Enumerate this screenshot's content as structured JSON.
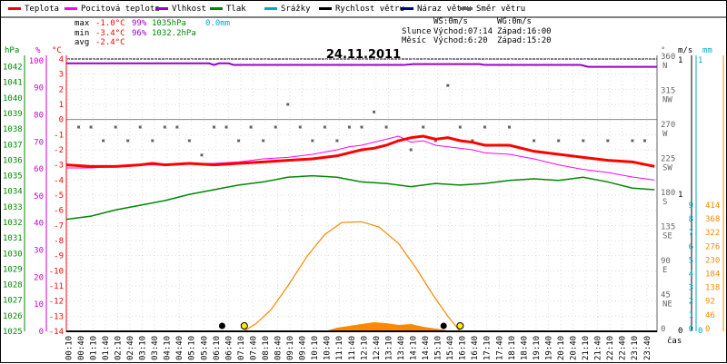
{
  "legend": [
    {
      "label": "Teplota",
      "color": "#ff0000"
    },
    {
      "label": "Pocitová teplota",
      "color": "#ff00ff"
    },
    {
      "label": "Vlhkost",
      "color": "#9900cc"
    },
    {
      "label": "Tlak",
      "color": "#008800"
    },
    {
      "label": "Srážky",
      "color": "#00aacc"
    },
    {
      "label": "Rychlost větru",
      "color": "#000000"
    },
    {
      "label": "Náraz větru",
      "color": "#000088"
    },
    {
      "label": "Směr větru",
      "color": "#666666"
    }
  ],
  "stats": {
    "max": {
      "label": "max",
      "temp": "-1.0°C",
      "hum": "99%",
      "press": "1035hPa",
      "rain": "0.0mm"
    },
    "min": {
      "label": "min",
      "temp": "-3.4°C",
      "hum": "96%",
      "press": "1032.2hPa"
    },
    "avg": {
      "label": "avg",
      "temp": "-2.4°C"
    }
  },
  "info": {
    "ws": "WS:0m/s",
    "wg": "WG:0m/s",
    "sun_label": "Slunce",
    "sunrise": "Východ:07:14",
    "sunset": "Západ:16:00",
    "moon_label": "Měsíc",
    "moonrise": "Východ:6:20",
    "moonset": "Západ:15:20"
  },
  "axis_units": {
    "hpa": "hPa",
    "pct": "%",
    "degc": "°C",
    "deg": "°",
    "ms": "m/s",
    "mm": "mm",
    "time": "čas"
  },
  "colors": {
    "temp": "#ff0000",
    "feels": "#ff00ff",
    "hum": "#9900cc",
    "press": "#008800",
    "rain": "#00aacc",
    "solar": "#ff8800",
    "wdir": "#666666"
  },
  "chart_data": {
    "type": "line",
    "title": "24.11.2011",
    "x_ticks": [
      "00:10",
      "00:40",
      "01:10",
      "01:40",
      "02:10",
      "02:40",
      "03:10",
      "03:40",
      "04:10",
      "04:40",
      "05:10",
      "05:40",
      "06:10",
      "06:40",
      "07:10",
      "07:40",
      "08:10",
      "08:40",
      "09:10",
      "09:40",
      "10:10",
      "10:40",
      "11:10",
      "11:40",
      "12:10",
      "12:40",
      "13:10",
      "13:40",
      "14:10",
      "14:40",
      "15:10",
      "15:40",
      "16:10",
      "16:40",
      "17:10",
      "17:40",
      "18:10",
      "18:40",
      "19:10",
      "19:40",
      "20:10",
      "20:40",
      "21:10",
      "21:40",
      "22:10",
      "22:40",
      "23:10",
      "23:40"
    ],
    "axes": {
      "pressure": {
        "ticks": [
          1025,
          1026,
          1027,
          1028,
          1029,
          1030,
          1031,
          1032,
          1033,
          1034,
          1035,
          1036,
          1037,
          1038,
          1039,
          1040,
          1041,
          1042
        ]
      },
      "humidity": {
        "ticks": [
          0,
          10,
          20,
          30,
          40,
          50,
          60,
          70,
          80,
          90,
          100
        ]
      },
      "temperature": {
        "ticks": [
          4,
          3,
          2,
          1,
          0,
          -1,
          -2,
          -3,
          -4,
          -5,
          -6,
          -7,
          -8,
          -9,
          -10,
          -11,
          -12,
          -13,
          -14
        ]
      },
      "direction": {
        "ticks": [
          {
            "v": "360",
            "d": "N"
          },
          {
            "v": "315",
            "d": "NW"
          },
          {
            "v": "270",
            "d": "W"
          },
          {
            "v": "225",
            "d": "SW"
          },
          {
            "v": "180",
            "d": "S"
          },
          {
            "v": "135",
            "d": "SE"
          },
          {
            "v": "90",
            "d": "E"
          },
          {
            "v": "45",
            "d": "NE"
          },
          {
            "v": "0",
            "d": ""
          }
        ]
      },
      "wind_ms": {
        "ticks": [
          1,
          0
        ]
      },
      "rain_mm": {
        "ticks": [
          1,
          0
        ]
      },
      "solar": {
        "ticks": [
          414,
          368,
          322,
          276,
          230,
          184,
          138,
          92,
          46,
          0
        ]
      },
      "uv": {
        "ticks": [
          9,
          8,
          7,
          6,
          5,
          4,
          3,
          2,
          1,
          0
        ]
      }
    },
    "series": [
      {
        "key": "temp",
        "values": [
          [
            0,
            -3.0
          ],
          [
            1,
            -3.1
          ],
          [
            2,
            -3.1
          ],
          [
            3,
            -3.0
          ],
          [
            3.5,
            -2.9
          ],
          [
            4,
            -3.0
          ],
          [
            5,
            -2.9
          ],
          [
            6,
            -3.0
          ],
          [
            7,
            -2.9
          ],
          [
            8,
            -2.8
          ],
          [
            9,
            -2.7
          ],
          [
            10,
            -2.6
          ],
          [
            11,
            -2.4
          ],
          [
            11.5,
            -2.2
          ],
          [
            12,
            -2.0
          ],
          [
            12.5,
            -1.9
          ],
          [
            13,
            -1.7
          ],
          [
            13.5,
            -1.4
          ],
          [
            14,
            -1.2
          ],
          [
            14.5,
            -1.1
          ],
          [
            15,
            -1.3
          ],
          [
            15.5,
            -1.2
          ],
          [
            16,
            -1.4
          ],
          [
            16.5,
            -1.5
          ],
          [
            17,
            -1.7
          ],
          [
            18,
            -1.7
          ],
          [
            18.5,
            -1.9
          ],
          [
            19,
            -2.1
          ],
          [
            20,
            -2.3
          ],
          [
            21,
            -2.5
          ],
          [
            22,
            -2.7
          ],
          [
            23,
            -2.8
          ],
          [
            23.9,
            -3.1
          ]
        ]
      },
      {
        "key": "feels",
        "values": [
          [
            0,
            -3.2
          ],
          [
            1,
            -3.2
          ],
          [
            2,
            -3.1
          ],
          [
            3,
            -3.0
          ],
          [
            4,
            -3.0
          ],
          [
            5,
            -2.9
          ],
          [
            6,
            -2.9
          ],
          [
            7,
            -2.8
          ],
          [
            8,
            -2.6
          ],
          [
            9,
            -2.5
          ],
          [
            10,
            -2.3
          ],
          [
            11,
            -2.0
          ],
          [
            11.5,
            -1.8
          ],
          [
            12,
            -1.7
          ],
          [
            12.5,
            -1.5
          ],
          [
            13,
            -1.3
          ],
          [
            13.5,
            -1.1
          ],
          [
            14,
            -1.5
          ],
          [
            14.5,
            -1.4
          ],
          [
            15,
            -1.7
          ],
          [
            16,
            -1.9
          ],
          [
            16.5,
            -2.0
          ],
          [
            17,
            -2.2
          ],
          [
            18,
            -2.3
          ],
          [
            19,
            -2.6
          ],
          [
            20,
            -3.0
          ],
          [
            21,
            -3.3
          ],
          [
            22,
            -3.5
          ],
          [
            23,
            -3.8
          ],
          [
            23.9,
            -4.0
          ]
        ]
      },
      {
        "key": "hum",
        "values": [
          [
            0,
            99
          ],
          [
            5.8,
            99
          ],
          [
            6.0,
            98.4
          ],
          [
            6.2,
            99
          ],
          [
            6.6,
            99
          ],
          [
            6.8,
            98.4
          ],
          [
            13.7,
            98.4
          ],
          [
            14.1,
            98.7
          ],
          [
            16.8,
            98.7
          ],
          [
            17.0,
            98.4
          ],
          [
            20.9,
            98.4
          ],
          [
            21.2,
            97.7
          ],
          [
            23.99,
            97.7
          ]
        ]
      },
      {
        "key": "press",
        "values": [
          [
            0,
            1032.2
          ],
          [
            1,
            1032.4
          ],
          [
            2,
            1032.8
          ],
          [
            3,
            1033.1
          ],
          [
            4,
            1033.4
          ],
          [
            5,
            1033.8
          ],
          [
            6,
            1034.1
          ],
          [
            7,
            1034.4
          ],
          [
            8,
            1034.6
          ],
          [
            9,
            1034.9
          ],
          [
            10,
            1035.0
          ],
          [
            11,
            1034.9
          ],
          [
            12,
            1034.6
          ],
          [
            13,
            1034.5
          ],
          [
            14,
            1034.3
          ],
          [
            15,
            1034.5
          ],
          [
            16,
            1034.4
          ],
          [
            17,
            1034.5
          ],
          [
            18,
            1034.7
          ],
          [
            19,
            1034.8
          ],
          [
            20,
            1034.7
          ],
          [
            21,
            1034.9
          ],
          [
            22,
            1034.6
          ],
          [
            23,
            1034.2
          ],
          [
            23.9,
            1034.1
          ]
        ]
      },
      {
        "key": "solar",
        "values": [
          [
            0,
            0
          ],
          [
            7.2,
            0
          ],
          [
            7.7,
            25
          ],
          [
            8.3,
            70
          ],
          [
            9,
            150
          ],
          [
            9.8,
            250
          ],
          [
            10.5,
            320
          ],
          [
            11.2,
            360
          ],
          [
            12,
            362
          ],
          [
            12.7,
            345
          ],
          [
            13.5,
            290
          ],
          [
            14.2,
            210
          ],
          [
            14.9,
            120
          ],
          [
            15.5,
            50
          ],
          [
            16.0,
            0
          ],
          [
            23.99,
            0
          ]
        ]
      }
    ],
    "wind_dir_points": [
      [
        0.5,
        270
      ],
      [
        1,
        270
      ],
      [
        1.5,
        252
      ],
      [
        2,
        270
      ],
      [
        2.5,
        252
      ],
      [
        3,
        270
      ],
      [
        3.5,
        252
      ],
      [
        4,
        270
      ],
      [
        4.5,
        270
      ],
      [
        5,
        252
      ],
      [
        5.5,
        233
      ],
      [
        6,
        270
      ],
      [
        6.5,
        270
      ],
      [
        7,
        252
      ],
      [
        7.5,
        270
      ],
      [
        8,
        252
      ],
      [
        8.5,
        270
      ],
      [
        9,
        300
      ],
      [
        9.5,
        270
      ],
      [
        10,
        252
      ],
      [
        10.5,
        270
      ],
      [
        11,
        252
      ],
      [
        11.5,
        270
      ],
      [
        12,
        270
      ],
      [
        12.5,
        290
      ],
      [
        13,
        270
      ],
      [
        13.5,
        252
      ],
      [
        14,
        240
      ],
      [
        14.5,
        270
      ],
      [
        15,
        252
      ],
      [
        15.5,
        325
      ],
      [
        16,
        270
      ],
      [
        16.5,
        252
      ],
      [
        17,
        270
      ],
      [
        18,
        270
      ],
      [
        19,
        252
      ],
      [
        20,
        252
      ],
      [
        21,
        252
      ],
      [
        22,
        252
      ],
      [
        23,
        252
      ],
      [
        23.5,
        252
      ]
    ]
  }
}
